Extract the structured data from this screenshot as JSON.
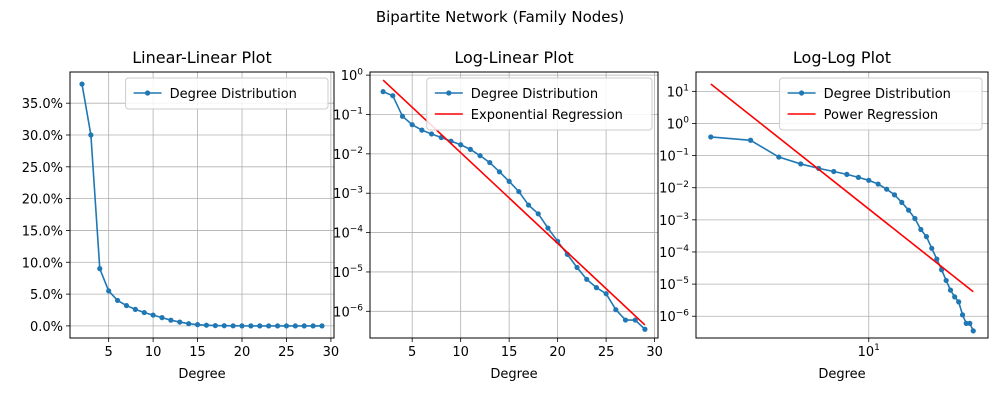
{
  "figure": {
    "suptitle": "Bipartite Network (Family Nodes)"
  },
  "colors": {
    "series": "#1f77b4",
    "regression": "#ff0000",
    "grid": "#b0b0b0",
    "axis": "#000000"
  },
  "chart_data": [
    {
      "type": "line",
      "title": "Linear-Linear Plot",
      "xlabel": "Degree",
      "ylabel": "",
      "xscale": "linear",
      "yscale": "linear",
      "xlim": [
        0.65,
        30.35
      ],
      "ylim": [
        -0.019,
        0.399
      ],
      "xticks": [
        5,
        10,
        15,
        20,
        25,
        30
      ],
      "xtick_labels": [
        "5",
        "10",
        "15",
        "20",
        "25",
        "30"
      ],
      "yticks": [
        0,
        0.05,
        0.1,
        0.15,
        0.2,
        0.25,
        0.3,
        0.35
      ],
      "ytick_labels": [
        "0.0%",
        "5.0%",
        "10.0%",
        "15.0%",
        "20.0%",
        "25.0%",
        "30.0%",
        "35.0%"
      ],
      "grid": true,
      "legend_position": "top-right",
      "series": [
        {
          "name": "Degree Distribution",
          "style": "line-markers",
          "x": [
            2,
            3,
            4,
            5,
            6,
            7,
            8,
            9,
            10,
            11,
            12,
            13,
            14,
            15,
            16,
            17,
            18,
            19,
            20,
            21,
            22,
            23,
            24,
            25,
            26,
            27,
            28,
            29
          ],
          "y": [
            0.38,
            0.3,
            0.09,
            0.055,
            0.04,
            0.032,
            0.026,
            0.021,
            0.017,
            0.013,
            0.009,
            0.006,
            0.0035,
            0.002,
            0.0011,
            0.0005,
            0.0003,
            0.00013,
            6e-05,
            2.8e-05,
            1.3e-05,
            6.5e-06,
            4e-06,
            2.8e-06,
            1.1e-06,
            6e-07,
            6e-07,
            3.5e-07
          ]
        }
      ]
    },
    {
      "type": "line",
      "title": "Log-Linear Plot",
      "xlabel": "Degree",
      "ylabel": "",
      "xscale": "linear",
      "yscale": "log",
      "xlim": [
        0.65,
        30.35
      ],
      "ylim": [
        2.1e-07,
        1.2
      ],
      "xticks": [
        5,
        10,
        15,
        20,
        25,
        30
      ],
      "xtick_labels": [
        "5",
        "10",
        "15",
        "20",
        "25",
        "30"
      ],
      "yticks": [
        1e-06,
        1e-05,
        0.0001,
        0.001,
        0.01,
        0.1,
        1
      ],
      "ytick_labels": [
        "10^-6",
        "10^-5",
        "10^-4",
        "10^-3",
        "10^-2",
        "10^-1",
        "10^0"
      ],
      "grid": true,
      "legend_position": "top-right",
      "series": [
        {
          "name": "Degree Distribution",
          "style": "line-markers",
          "x": [
            2,
            3,
            4,
            5,
            6,
            7,
            8,
            9,
            10,
            11,
            12,
            13,
            14,
            15,
            16,
            17,
            18,
            19,
            20,
            21,
            22,
            23,
            24,
            25,
            26,
            27,
            28,
            29
          ],
          "y": [
            0.38,
            0.3,
            0.09,
            0.055,
            0.04,
            0.032,
            0.026,
            0.021,
            0.017,
            0.013,
            0.009,
            0.006,
            0.0035,
            0.002,
            0.0011,
            0.0005,
            0.0003,
            0.00013,
            6e-05,
            2.8e-05,
            1.3e-05,
            6.5e-06,
            4e-06,
            2.8e-06,
            1.1e-06,
            6e-07,
            6e-07,
            3.5e-07
          ]
        },
        {
          "name": "Exponential Regression",
          "style": "line",
          "x": [
            2,
            29
          ],
          "y": [
            0.75,
            4.5e-07
          ]
        }
      ]
    },
    {
      "type": "line",
      "title": "Log-Log Plot",
      "xlabel": "Degree",
      "ylabel": "",
      "xscale": "log",
      "yscale": "log",
      "xlim": [
        1.72,
        33.7
      ],
      "ylim": [
        2.1e-07,
        40
      ],
      "xticks": [
        10
      ],
      "xtick_labels": [
        "10^1"
      ],
      "yticks": [
        1e-06,
        1e-05,
        0.0001,
        0.001,
        0.01,
        0.1,
        1,
        10
      ],
      "ytick_labels": [
        "10^-6",
        "10^-5",
        "10^-4",
        "10^-3",
        "10^-2",
        "10^-1",
        "10^0",
        "10^1"
      ],
      "grid": true,
      "legend_position": "top-right",
      "series": [
        {
          "name": "Degree Distribution",
          "style": "line-markers",
          "x": [
            2,
            3,
            4,
            5,
            6,
            7,
            8,
            9,
            10,
            11,
            12,
            13,
            14,
            15,
            16,
            17,
            18,
            19,
            20,
            21,
            22,
            23,
            24,
            25,
            26,
            27,
            28,
            29
          ],
          "y": [
            0.38,
            0.3,
            0.09,
            0.055,
            0.04,
            0.032,
            0.026,
            0.021,
            0.017,
            0.013,
            0.009,
            0.006,
            0.0035,
            0.002,
            0.0011,
            0.0005,
            0.0003,
            0.00013,
            6e-05,
            2.8e-05,
            1.3e-05,
            6.5e-06,
            4e-06,
            2.8e-06,
            1.1e-06,
            6e-07,
            6e-07,
            3.5e-07
          ]
        },
        {
          "name": "Power Regression",
          "style": "line",
          "x": [
            2,
            29
          ],
          "y": [
            17,
            5.8e-06
          ]
        }
      ]
    }
  ]
}
